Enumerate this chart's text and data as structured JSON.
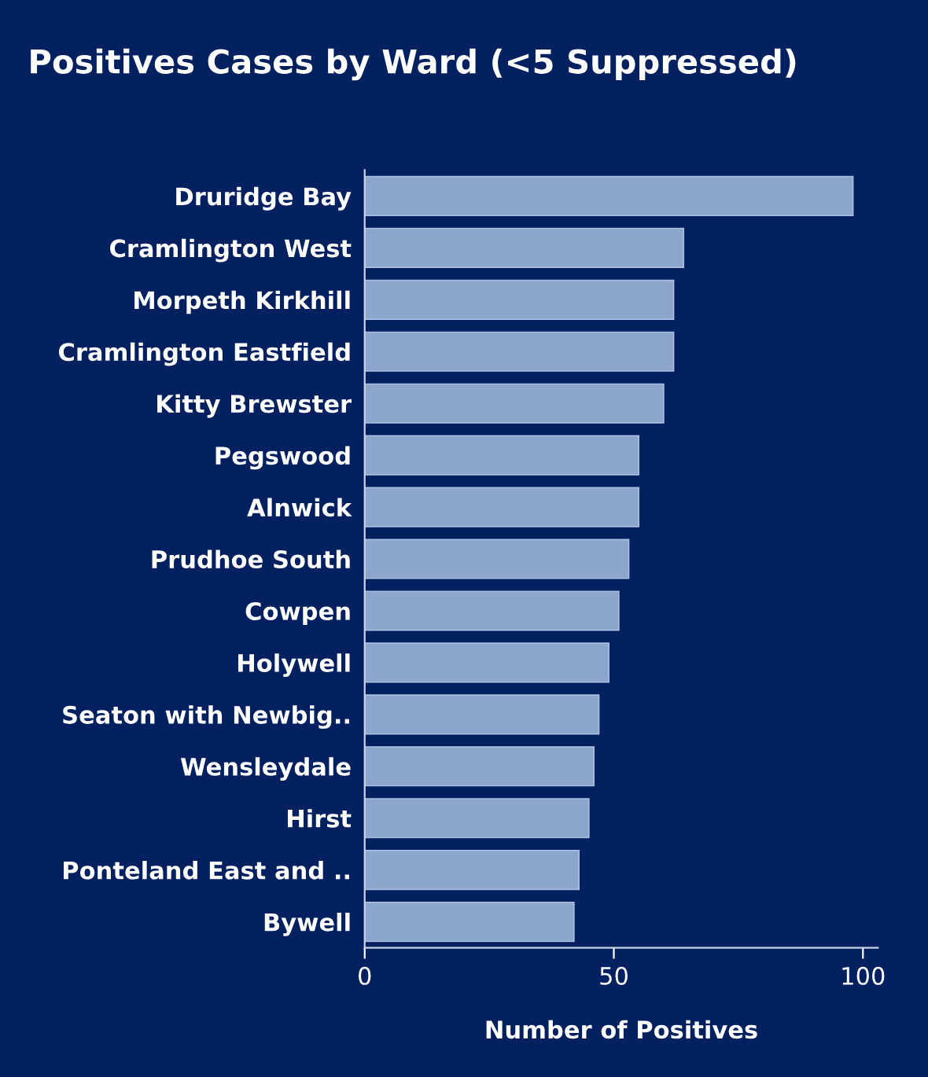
{
  "chart_data": {
    "type": "bar",
    "orientation": "horizontal",
    "title": "Positives Cases by Ward (<5 Suppressed)",
    "xlabel": "Number of Positives",
    "categories": [
      "Druridge Bay",
      "Cramlington West",
      "Morpeth Kirkhill",
      "Cramlington Eastfield",
      "Kitty Brewster",
      "Pegswood",
      "Alnwick",
      "Prudhoe South",
      "Cowpen",
      "Holywell",
      "Seaton with Newbig..",
      "Wensleydale",
      "Hirst",
      "Ponteland East and ..",
      "Bywell"
    ],
    "values": [
      98,
      64,
      62,
      62,
      60,
      55,
      55,
      53,
      51,
      49,
      47,
      46,
      45,
      43,
      42
    ],
    "color": "#8ba5cc",
    "xlim": [
      0,
      103
    ],
    "xticks": [
      0,
      50,
      100
    ],
    "grid": false
  }
}
